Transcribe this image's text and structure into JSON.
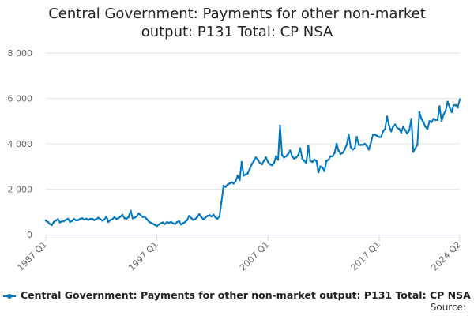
{
  "title_line1": "Central Government: Payments for other non-market",
  "title_line2": "output: P131 Total: CP NSA",
  "legend_label": "Central Government: Payments for other non-market output: P131 Total: CP NSA",
  "source_label": "Source:",
  "colors": {
    "series": "#0077c0",
    "grid": "#e6e6e6",
    "axis": "#ccd6eb",
    "tick_text": "#666666"
  },
  "chart_data": {
    "type": "line",
    "title": "Central Government: Payments for other non-market output: P131 Total: CP NSA",
    "xlabel": "",
    "ylabel": "",
    "ylim": [
      0,
      8000
    ],
    "y_ticks": [
      "0",
      "2 000",
      "4 000",
      "6 000",
      "8 000"
    ],
    "x_ticks": [
      "1987 Q1",
      "1997 Q1",
      "2007 Q1",
      "2017 Q1",
      "2024 Q2"
    ],
    "x_start": "1987 Q1",
    "x_end": "2024 Q2",
    "series": [
      {
        "name": "Central Government: Payments for other non-market output: P131 Total: CP NSA",
        "values": [
          620,
          560,
          470,
          430,
          560,
          620,
          680,
          540,
          580,
          600,
          650,
          700,
          560,
          610,
          690,
          630,
          640,
          690,
          720,
          660,
          700,
          650,
          690,
          700,
          640,
          680,
          740,
          680,
          620,
          660,
          800,
          560,
          640,
          680,
          770,
          690,
          720,
          800,
          870,
          720,
          700,
          780,
          1050,
          720,
          750,
          800,
          940,
          850,
          780,
          790,
          680,
          580,
          520,
          480,
          430,
          380,
          450,
          500,
          540,
          470,
          550,
          520,
          560,
          500,
          470,
          550,
          600,
          450,
          500,
          560,
          650,
          820,
          730,
          650,
          680,
          780,
          900,
          780,
          670,
          750,
          820,
          860,
          800,
          880,
          760,
          700,
          800,
          1450,
          2150,
          2100,
          2200,
          2250,
          2300,
          2250,
          2350,
          2600,
          2400,
          3200,
          2600,
          2650,
          2700,
          2900,
          3100,
          3250,
          3400,
          3300,
          3150,
          3100,
          3250,
          3400,
          3200,
          3100,
          3050,
          3150,
          3450,
          3300,
          4800,
          3500,
          3400,
          3450,
          3550,
          3700,
          3450,
          3350,
          3400,
          3500,
          3800,
          3350,
          3250,
          3150,
          3900,
          3250,
          3200,
          3300,
          3250,
          2750,
          3000,
          2950,
          2800,
          3250,
          3300,
          3450,
          3450,
          3600,
          4000,
          3700,
          3550,
          3600,
          3750,
          3950,
          4400,
          3850,
          3750,
          3800,
          4300,
          3950,
          3950,
          3950,
          4000,
          3900,
          3750,
          4050,
          4400,
          4400,
          4350,
          4300,
          4300,
          4550,
          4650,
          5200,
          4800,
          4550,
          4750,
          4850,
          4700,
          4650,
          4500,
          4750,
          4600,
          4450,
          4600,
          5100,
          3650,
          3800,
          3950,
          5400,
          5100,
          4950,
          4750,
          4650,
          5000,
          4950,
          5100,
          5050,
          5050,
          5650,
          5000,
          5300,
          5450,
          5850,
          5600,
          5400,
          5700,
          5700,
          5600,
          5950
        ]
      }
    ]
  }
}
